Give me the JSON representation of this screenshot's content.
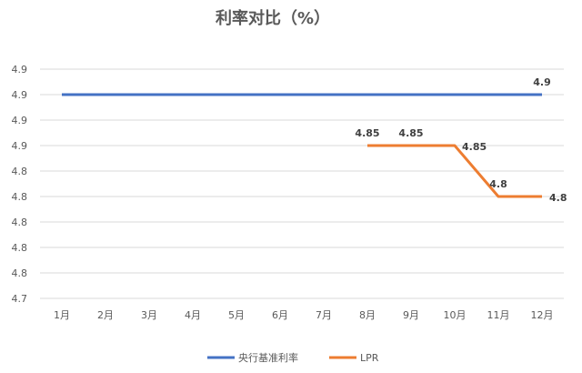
{
  "chart_data": {
    "type": "line",
    "title": "利率对比（%）",
    "xlabel": "",
    "ylabel": "",
    "categories": [
      "1月",
      "2月",
      "3月",
      "4月",
      "5月",
      "6月",
      "7月",
      "8月",
      "9月",
      "10月",
      "11月",
      "12月"
    ],
    "y_tick_labels": [
      "4.9",
      "4.9",
      "4.9",
      "4.9",
      "4.8",
      "4.8",
      "4.8",
      "4.8",
      "4.8",
      "4.7"
    ],
    "ylim": [
      4.7,
      4.925
    ],
    "grid": true,
    "legend_position": "bottom",
    "series": [
      {
        "name": "央行基准利率",
        "color": "#4472C4",
        "values": [
          4.9,
          4.9,
          4.9,
          4.9,
          4.9,
          4.9,
          4.9,
          4.9,
          4.9,
          4.9,
          4.9,
          4.9
        ],
        "labels": [
          null,
          null,
          null,
          null,
          null,
          null,
          null,
          null,
          null,
          null,
          null,
          "4.9"
        ]
      },
      {
        "name": "LPR",
        "color": "#ED7D31",
        "values": [
          null,
          null,
          null,
          null,
          null,
          null,
          null,
          4.85,
          4.85,
          4.85,
          4.8,
          4.8
        ],
        "labels": [
          null,
          null,
          null,
          null,
          null,
          null,
          null,
          "4.85",
          "4.85",
          "4.85",
          "4.8",
          "4.8"
        ]
      }
    ]
  }
}
